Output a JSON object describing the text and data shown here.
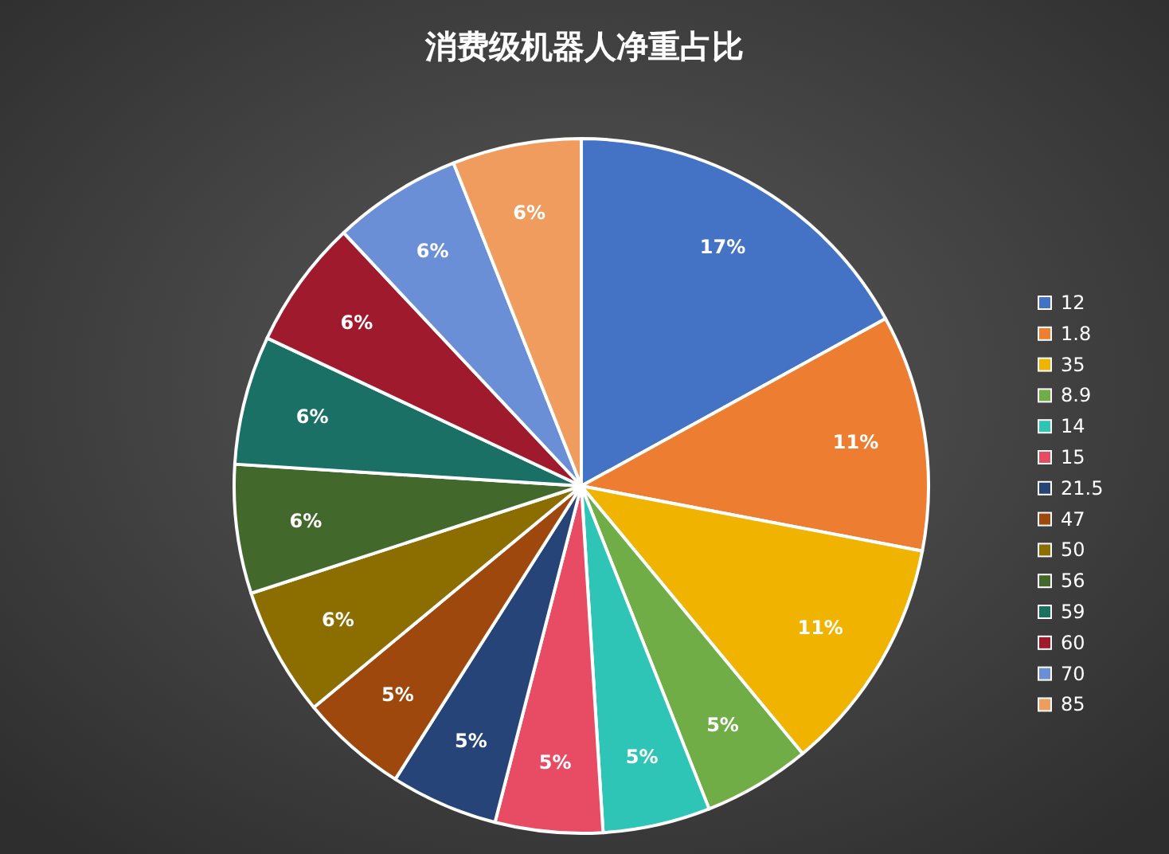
{
  "chart_data": {
    "type": "pie",
    "title": "消费级机器人净重占比",
    "categories": [
      "12",
      "1.8",
      "35",
      "8.9",
      "14",
      "15",
      "21.5",
      "47",
      "50",
      "56",
      "59",
      "60",
      "70",
      "85"
    ],
    "values": [
      17,
      11,
      11,
      5,
      5,
      5,
      5,
      5,
      6,
      6,
      6,
      6,
      6,
      6
    ],
    "colors": [
      "#4472c4",
      "#ed7d31",
      "#f0b400",
      "#70ad47",
      "#2ec4b6",
      "#e84c64",
      "#264478",
      "#9e480e",
      "#8c6d00",
      "#43682b",
      "#1a7065",
      "#a01a2d",
      "#6b8fd6",
      "#f09c5e"
    ],
    "value_labels": [
      "17%",
      "11%",
      "11%",
      "5%",
      "5%",
      "5%",
      "5%",
      "5%",
      "6%",
      "6%",
      "6%",
      "6%",
      "6%",
      "6%"
    ],
    "legend": "right"
  }
}
